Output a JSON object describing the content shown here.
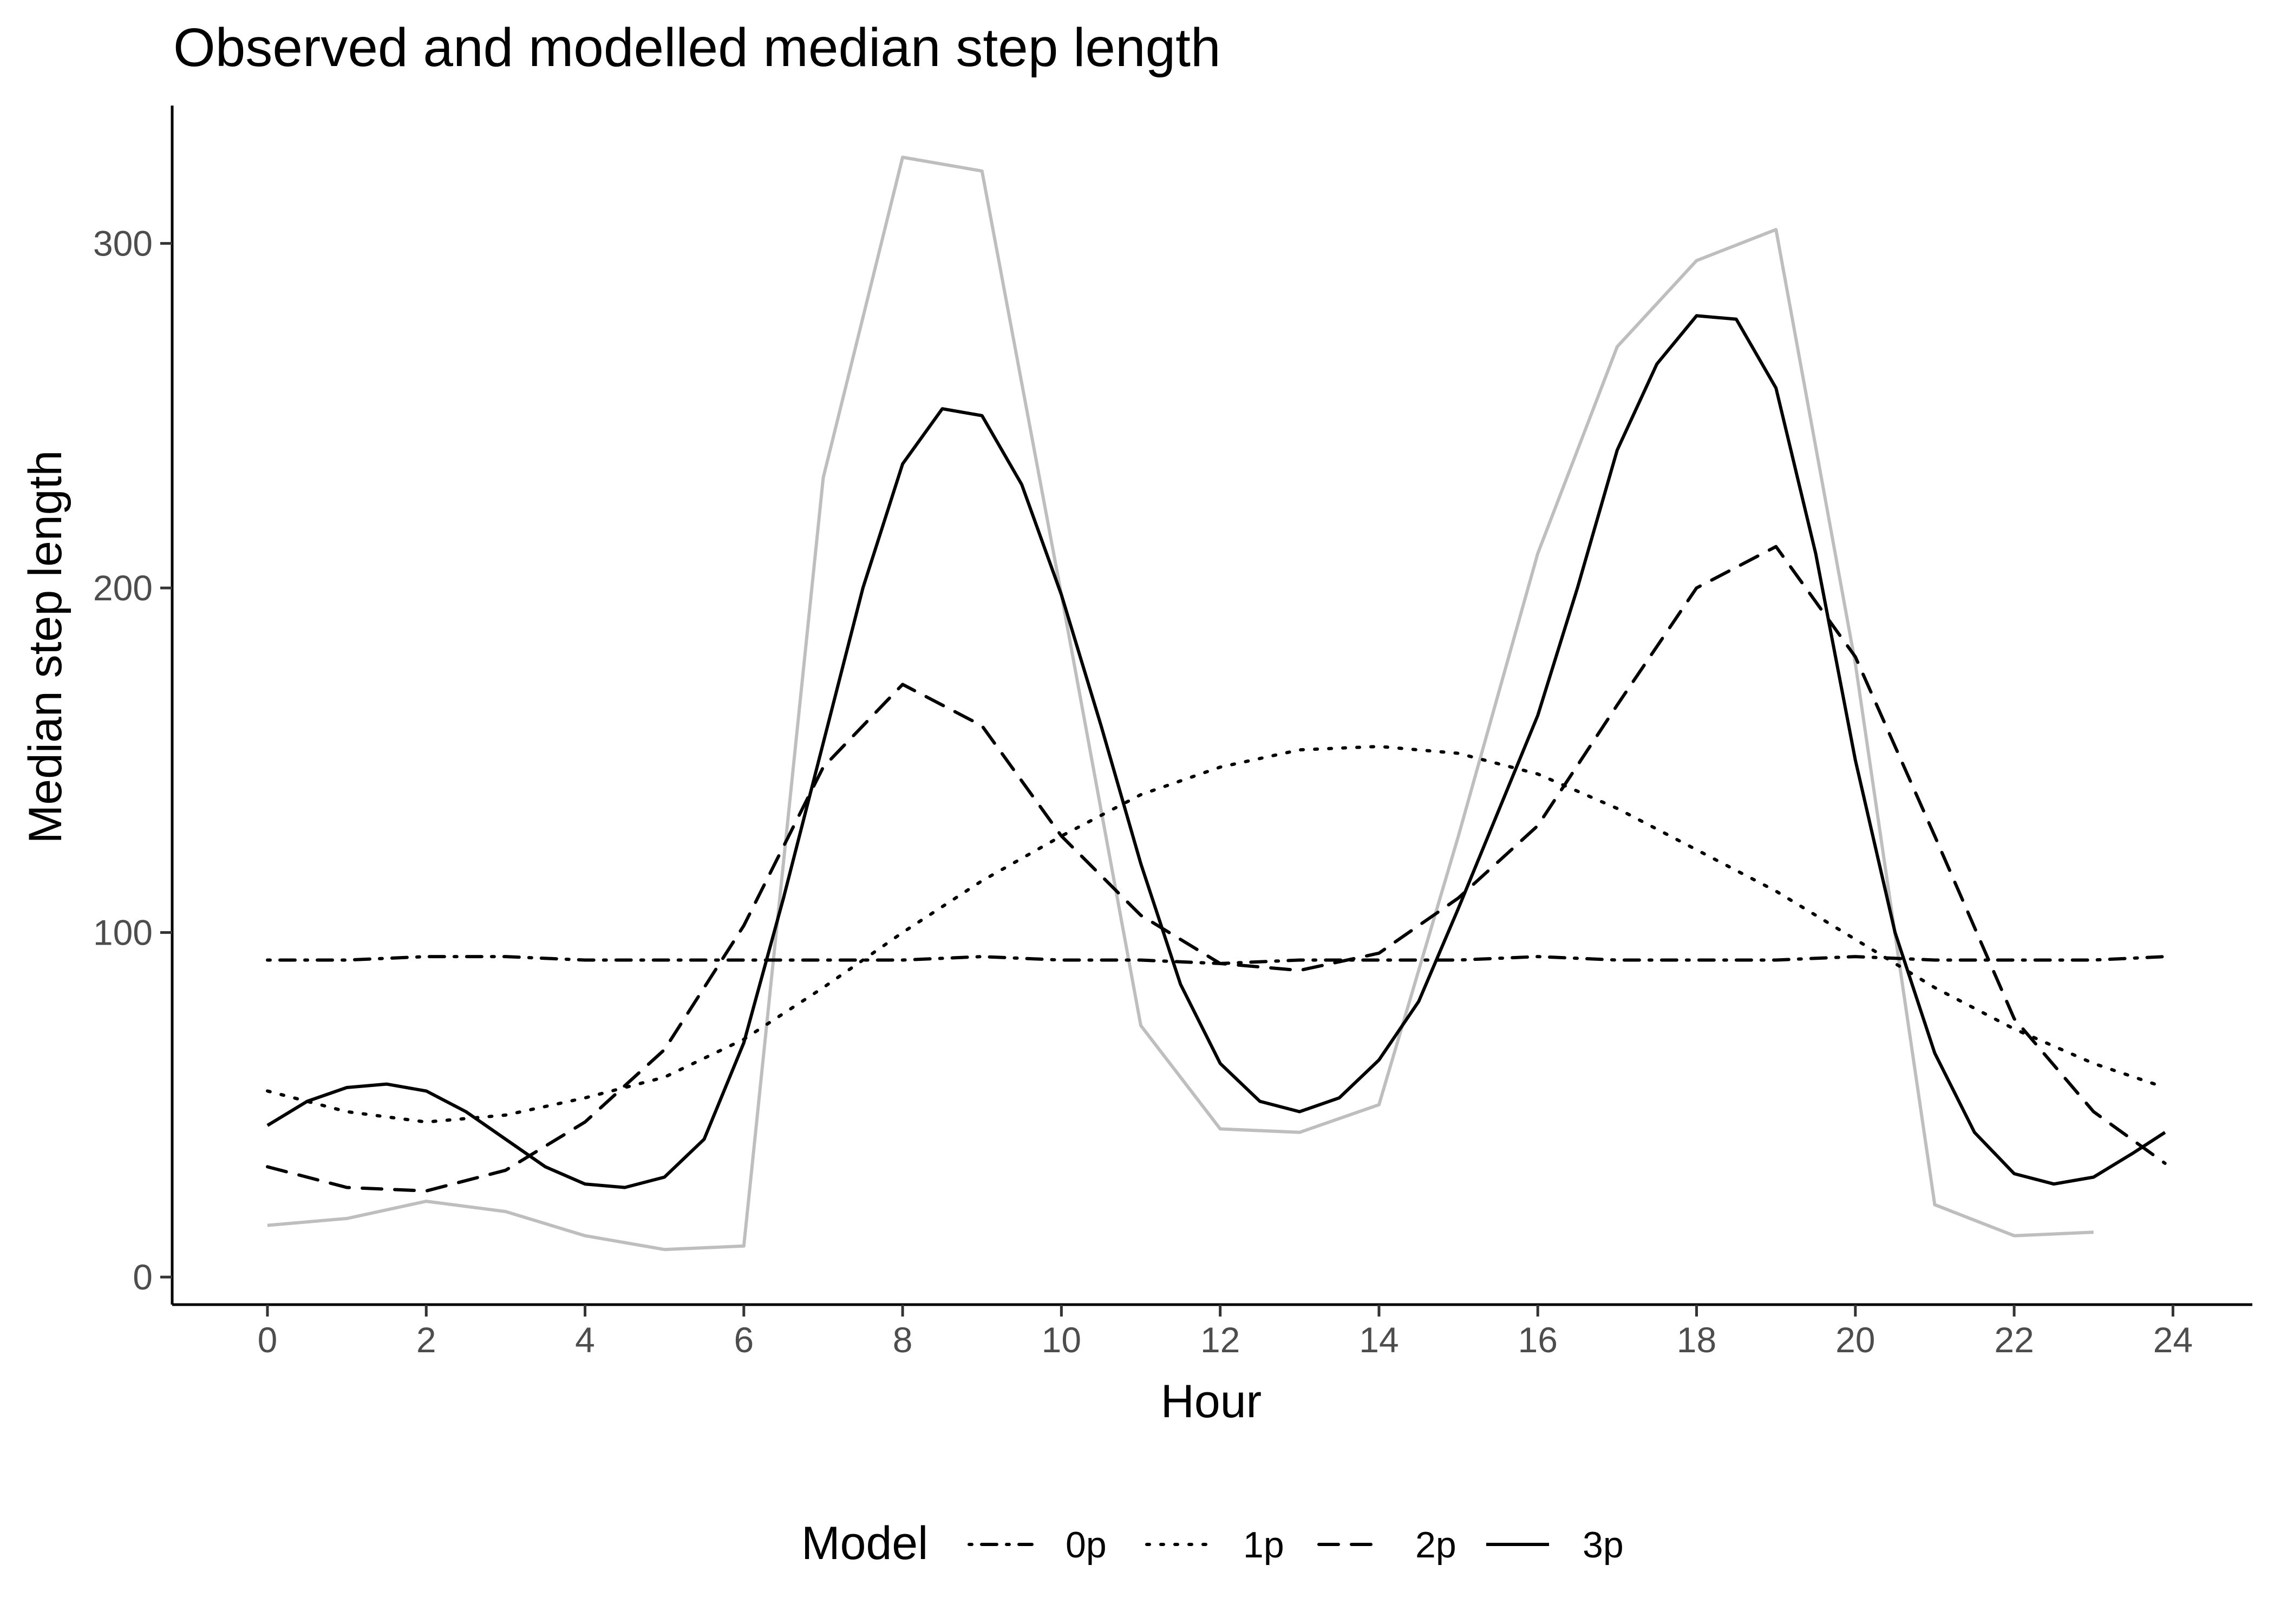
{
  "chart_data": {
    "type": "line",
    "title": "Observed and modelled median step length",
    "xlabel": "Hour",
    "ylabel": "Median step length",
    "xlim": [
      -1.2,
      25
    ],
    "ylim": [
      -8,
      340
    ],
    "x_ticks": [
      0,
      2,
      4,
      6,
      8,
      10,
      12,
      14,
      16,
      18,
      20,
      22,
      24
    ],
    "y_ticks": [
      0,
      100,
      200,
      300
    ],
    "x_tick_labels": [
      "0",
      "2",
      "4",
      "6",
      "8",
      "10",
      "12",
      "14",
      "16",
      "18",
      "20",
      "22",
      "24"
    ],
    "y_tick_labels": [
      "0",
      "100",
      "200",
      "300"
    ],
    "grid": false,
    "legend": {
      "title": "Model",
      "position": "bottom"
    },
    "observed": {
      "color": "#bebebe",
      "x": [
        0,
        1,
        2,
        3,
        4,
        5,
        6,
        7,
        8,
        9,
        10,
        11,
        12,
        13,
        14,
        15,
        16,
        17,
        18,
        19,
        20,
        21,
        22,
        23
      ],
      "y": [
        15,
        17,
        22,
        19,
        12,
        8,
        9,
        232,
        325,
        321,
        198,
        73,
        43,
        42,
        50,
        128,
        210,
        270,
        295,
        304,
        178,
        21,
        12,
        13
      ]
    },
    "series": [
      {
        "name": "0p",
        "dash": "dotdash",
        "x": [
          0,
          1,
          2,
          3,
          4,
          5,
          6,
          7,
          8,
          9,
          10,
          11,
          12,
          13,
          14,
          15,
          16,
          17,
          18,
          19,
          20,
          21,
          22,
          23,
          23.9
        ],
        "y": [
          92,
          92,
          93,
          93,
          92,
          92,
          92,
          92,
          92,
          93,
          92,
          92,
          91,
          92,
          92,
          92,
          93,
          92,
          92,
          92,
          93,
          92,
          92,
          92,
          93
        ]
      },
      {
        "name": "1p",
        "dash": "dotted",
        "x": [
          0,
          1,
          2,
          3,
          4,
          5,
          6,
          7,
          8,
          9,
          10,
          11,
          12,
          13,
          14,
          15,
          16,
          17,
          18,
          19,
          20,
          21,
          22,
          23,
          23.9
        ],
        "y": [
          54,
          48,
          45,
          47,
          52,
          58,
          69,
          84,
          100,
          115,
          128,
          140,
          148,
          153,
          154,
          152,
          146,
          136,
          124,
          112,
          98,
          84,
          72,
          62,
          55
        ]
      },
      {
        "name": "2p",
        "dash": "dashed",
        "x": [
          0,
          1,
          2,
          3,
          4,
          5,
          6,
          7,
          8,
          9,
          10,
          11,
          12,
          13,
          14,
          15,
          16,
          17,
          18,
          19,
          20,
          21,
          22,
          23,
          23.9
        ],
        "y": [
          32,
          26,
          25,
          31,
          45,
          66,
          102,
          148,
          172,
          160,
          128,
          105,
          91,
          89,
          94,
          110,
          131,
          166,
          200,
          212,
          180,
          128,
          75,
          48,
          33
        ]
      },
      {
        "name": "3p",
        "dash": "solid",
        "x": [
          0,
          0.5,
          1,
          1.5,
          2,
          2.5,
          3,
          3.5,
          4,
          4.5,
          5,
          5.5,
          6,
          6.5,
          7,
          7.5,
          8,
          8.5,
          9,
          9.5,
          10,
          10.5,
          11,
          11.5,
          12,
          12.5,
          13,
          13.5,
          14,
          14.5,
          15,
          15.5,
          16,
          16.5,
          17,
          17.5,
          18,
          18.5,
          19,
          19.5,
          20,
          20.5,
          21,
          21.5,
          22,
          22.5,
          23,
          23.5,
          23.9
        ],
        "y": [
          44,
          51,
          55,
          56,
          54,
          48,
          40,
          32,
          27,
          26,
          29,
          40,
          68,
          110,
          155,
          200,
          236,
          252,
          250,
          230,
          198,
          160,
          120,
          85,
          62,
          51,
          48,
          52,
          63,
          80,
          107,
          135,
          163,
          200,
          240,
          265,
          279,
          278,
          258,
          210,
          150,
          100,
          65,
          42,
          30,
          27,
          29,
          36,
          42
        ]
      }
    ]
  }
}
